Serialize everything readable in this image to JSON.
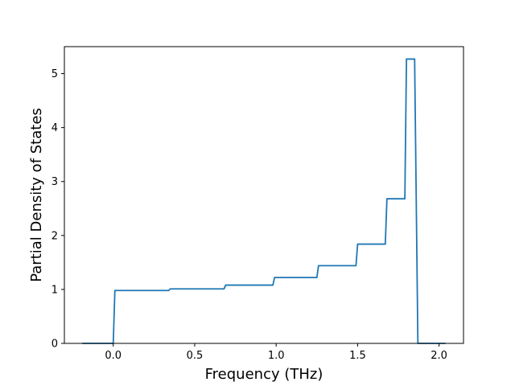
{
  "chart_data": {
    "type": "line",
    "title": "",
    "xlabel": "Frequency (THz)",
    "ylabel": "Partial Density of States",
    "xlim": [
      -0.3,
      2.15
    ],
    "ylim": [
      0,
      5.5
    ],
    "xticks": [
      0.0,
      0.5,
      1.0,
      1.5,
      2.0
    ],
    "xtick_labels": [
      "0.0",
      "0.5",
      "1.0",
      "1.5",
      "2.0"
    ],
    "yticks": [
      0,
      1,
      2,
      3,
      4,
      5
    ],
    "ytick_labels": [
      "0",
      "1",
      "2",
      "3",
      "4",
      "5"
    ],
    "grid": false,
    "line_color": "#1f77b4",
    "series": [
      {
        "points": [
          [
            -0.19,
            0.0
          ],
          [
            0.0,
            0.0
          ],
          [
            0.01,
            0.98
          ],
          [
            0.34,
            0.98
          ],
          [
            0.35,
            1.01
          ],
          [
            0.68,
            1.01
          ],
          [
            0.69,
            1.08
          ],
          [
            0.98,
            1.08
          ],
          [
            0.99,
            1.22
          ],
          [
            1.25,
            1.22
          ],
          [
            1.26,
            1.44
          ],
          [
            1.49,
            1.44
          ],
          [
            1.5,
            1.84
          ],
          [
            1.67,
            1.84
          ],
          [
            1.68,
            2.68
          ],
          [
            1.79,
            2.68
          ],
          [
            1.8,
            5.27
          ],
          [
            1.85,
            5.27
          ],
          [
            1.87,
            0.0
          ],
          [
            2.04,
            0.0
          ]
        ]
      }
    ]
  }
}
